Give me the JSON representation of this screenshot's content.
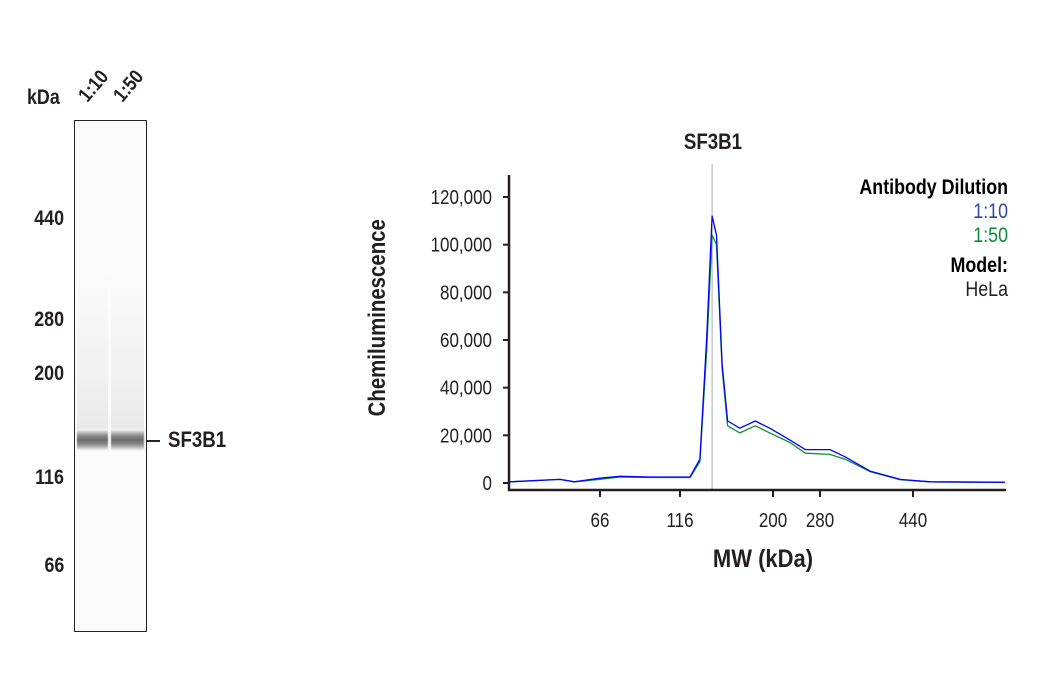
{
  "blot": {
    "unit_label": "kDa",
    "lanes": [
      "1:10",
      "1:50"
    ],
    "markers": [
      "440",
      "280",
      "200",
      "116",
      "66"
    ],
    "band_label": "SF3B1"
  },
  "chart_data": {
    "type": "line",
    "title": "SF3B1",
    "xlabel": "MW (kDa)",
    "ylabel": "Chemiluminescence",
    "xticks": [
      66,
      116,
      200,
      280,
      440
    ],
    "yticks": [
      "0",
      "20,000",
      "40,000",
      "60,000",
      "80,000",
      "100,000",
      "120,000"
    ],
    "ylim": [
      0,
      120000
    ],
    "marker_line_kDa": 145,
    "grid": false,
    "legend": {
      "title": "Antibody Dilution",
      "model_label": "Model:",
      "model": "HeLa",
      "placement": "top-right"
    },
    "x": [
      10,
      41,
      50,
      66,
      78.5,
      97,
      125,
      134,
      140,
      145,
      149,
      154,
      159,
      170,
      184,
      197,
      229,
      255,
      297,
      323,
      366,
      418,
      469,
      598
    ],
    "series": [
      {
        "name": "1:10",
        "color": "#0000ff",
        "label_color": "#2e4a9e",
        "values": [
          500,
          1500,
          500,
          2000,
          2800,
          2500,
          2500,
          10000,
          60000,
          112000,
          104000,
          50000,
          26000,
          23000,
          26000,
          23000,
          18000,
          14000,
          14000,
          11000,
          5000,
          1500,
          500,
          300
        ]
      },
      {
        "name": "1:50",
        "color": "#109030",
        "label_color": "#0a8a3a",
        "values": [
          500,
          1500,
          500,
          1500,
          2500,
          2300,
          2300,
          9000,
          55000,
          104000,
          100000,
          48000,
          24000,
          21000,
          24000,
          21000,
          17000,
          12500,
          12000,
          10000,
          4800,
          1400,
          500,
          300
        ]
      }
    ]
  }
}
